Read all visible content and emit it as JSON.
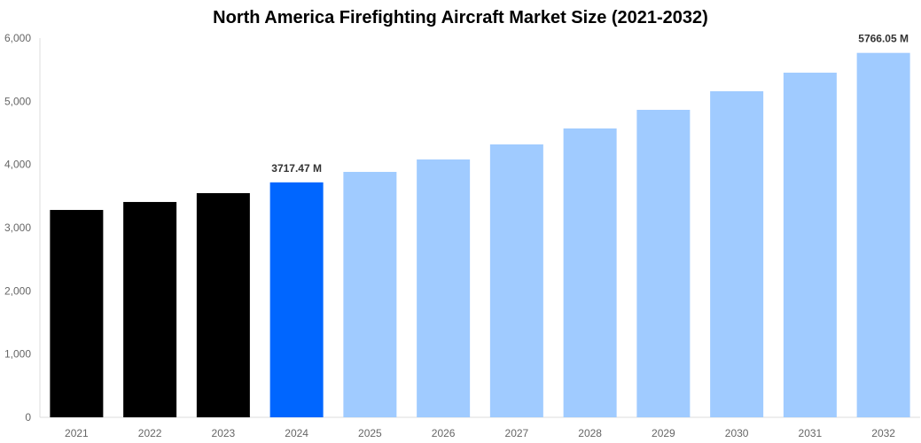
{
  "chart_data": {
    "type": "bar",
    "title": "North America Firefighting Aircraft Market Size (2021-2032)",
    "xlabel": "",
    "ylabel": "",
    "categories": [
      "2021",
      "2022",
      "2023",
      "2024",
      "2025",
      "2026",
      "2027",
      "2028",
      "2029",
      "2030",
      "2031",
      "2032"
    ],
    "values": [
      3281,
      3407,
      3547,
      3717.47,
      3883,
      4080,
      4318,
      4570,
      4865,
      5159,
      5453,
      5766.05
    ],
    "ylim": [
      0,
      6000
    ],
    "yticks": [
      "0",
      "1,000",
      "2,000",
      "3,000",
      "4,000",
      "5,000",
      "6,000"
    ],
    "data_labels": {
      "3": "3717.47 M",
      "11": "5766.05 M"
    },
    "colors": [
      "#000000",
      "#000000",
      "#000000",
      "#0066ff",
      "#a0cbff",
      "#a0cbff",
      "#a0cbff",
      "#a0cbff",
      "#a0cbff",
      "#a0cbff",
      "#a0cbff",
      "#a0cbff"
    ],
    "grid": false,
    "legend": "none"
  }
}
